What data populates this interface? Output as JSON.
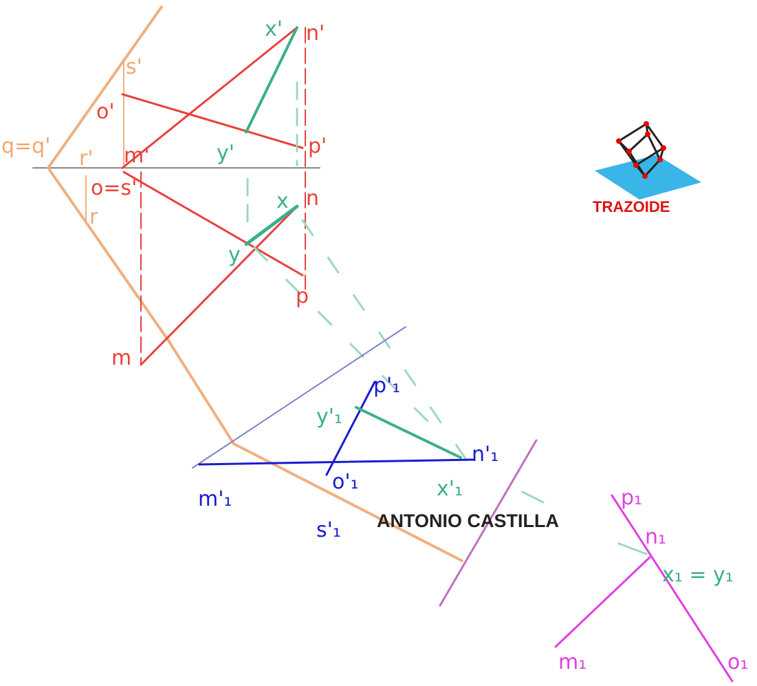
{
  "labels": {
    "x_prime": "x'",
    "n_prime": "n'",
    "s_prime": "s'",
    "o_prime": "o'",
    "q_eq_q_prime": "q=q'",
    "r_prime": "r'",
    "m_prime": "m'",
    "p_prime": "p'",
    "y_prime": "y'",
    "o_eq_s_prime": "o=s'",
    "x": "x",
    "n": "n",
    "r": "r",
    "y": "y",
    "p": "p",
    "m": "m",
    "p1_prime": "p'₁",
    "y1_prime": "y'₁",
    "n1_prime": "n'₁",
    "m1_prime": "m'₁",
    "o1_prime": "o'₁",
    "x1_prime": "x'₁",
    "s1_prime": "s'₁",
    "p1": "p₁",
    "n1": "n₁",
    "x1_eq_y1": "x₁ = y₁",
    "m1": "m₁",
    "o1": "o₁"
  },
  "author": "ANTONIO CASTILLA",
  "logo": "TRAZOIDE"
}
